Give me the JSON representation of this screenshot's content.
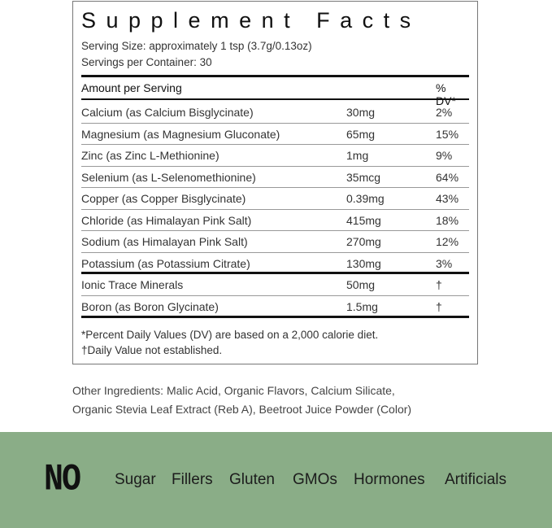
{
  "title": "Supplement Facts",
  "serving_size": "Serving Size: approximately 1 tsp (3.7g/0.13oz)",
  "servings_per_container": "Servings per Container: 30",
  "header": {
    "amount": "Amount per Serving",
    "dv": "% DV*"
  },
  "rows": [
    {
      "name": "Calcium (as Calcium Bisglycinate)",
      "amount": "30mg",
      "dv": "2%"
    },
    {
      "name": "Magnesium (as Magnesium Gluconate)",
      "amount": "65mg",
      "dv": "15%"
    },
    {
      "name": "Zinc (as Zinc L-Methionine)",
      "amount": "1mg",
      "dv": "9%"
    },
    {
      "name": "Selenium (as L-Selenomethionine)",
      "amount": "35mcg",
      "dv": "64%"
    },
    {
      "name": "Copper (as Copper Bisglycinate)",
      "amount": "0.39mg",
      "dv": "43%"
    },
    {
      "name": "Chloride (as Himalayan Pink Salt)",
      "amount": "415mg",
      "dv": "18%"
    },
    {
      "name": "Sodium (as Himalayan Pink Salt)",
      "amount": "270mg",
      "dv": "12%"
    },
    {
      "name": "Potassium (as Potassium Citrate)",
      "amount": "130mg",
      "dv": "3%"
    },
    {
      "name": "Ionic Trace Minerals",
      "amount": "50mg",
      "dv": "†"
    },
    {
      "name": "Boron (as Boron Glycinate)",
      "amount": "1.5mg",
      "dv": "†"
    }
  ],
  "footnotes": [
    "*Percent Daily Values (DV) are based on a  2,000 calorie diet.",
    "†Daily Value not established."
  ],
  "other_ingredients": [
    "Other Ingredients: Malic Acid, Organic Flavors, Calcium Silicate,",
    "Organic Stevia Leaf Extract (Reb A), Beetroot Juice Powder (Color)"
  ],
  "free_from": {
    "label": "NO",
    "items": [
      "Sugar",
      "Fillers",
      "Gluten",
      "GMOs",
      "Hormones",
      "Artificials"
    ]
  },
  "colors": {
    "band": "#8aad87"
  }
}
